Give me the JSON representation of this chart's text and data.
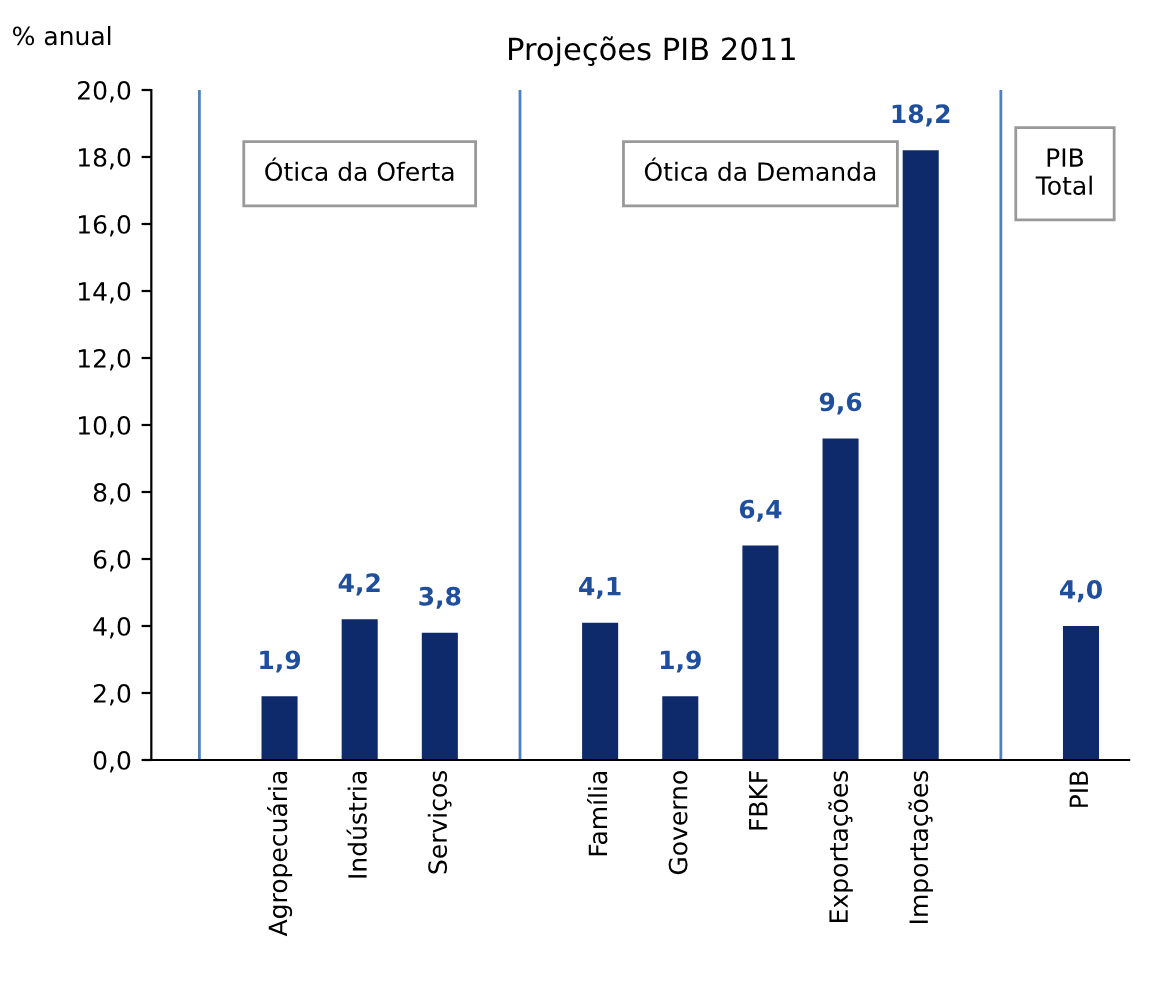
{
  "chart_data": {
    "type": "bar",
    "title": "Projeções PIB 2011",
    "ylabel": "% anual",
    "categories": [
      null,
      "Agropecuária",
      "Indústria",
      "Serviços",
      null,
      "Família",
      "Governo",
      "FBKF",
      "Exportações",
      "Importações",
      null,
      "PIB"
    ],
    "values": [
      null,
      1.9,
      4.2,
      3.8,
      null,
      4.1,
      1.9,
      6.4,
      9.6,
      18.2,
      null,
      4.0
    ],
    "value_labels": [
      null,
      "1,9",
      "4,2",
      "3,8",
      null,
      "4,1",
      "1,9",
      "6,4",
      "9,6",
      "18,2",
      null,
      "4,0"
    ],
    "color": "#0f2a6b",
    "ylim": [
      0,
      20
    ],
    "yticks": [
      {
        "value": 0,
        "label": "0,0"
      },
      {
        "value": 2,
        "label": "2,0"
      },
      {
        "value": 4,
        "label": "4,0"
      },
      {
        "value": 6,
        "label": "6,0"
      },
      {
        "value": 8,
        "label": "8,0"
      },
      {
        "value": 10,
        "label": "10,0"
      },
      {
        "value": 12,
        "label": "12,0"
      },
      {
        "value": 14,
        "label": "14,0"
      },
      {
        "value": 16,
        "label": "16,0"
      },
      {
        "value": 18,
        "label": "18,0"
      },
      {
        "value": 20,
        "label": "20,0"
      }
    ],
    "annotations": [
      "Ótica da Oferta",
      "Ótica da Demanda",
      "PIB\nTotal"
    ],
    "grid": "x",
    "legend": false
  }
}
